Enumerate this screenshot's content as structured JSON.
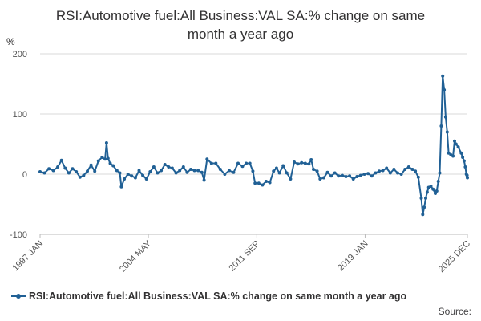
{
  "chart_data": {
    "type": "line",
    "title_lines": [
      "RSI:Automotive fuel:All Business:VAL SA:% change on same",
      "month a year ago"
    ],
    "ylabel": "%",
    "ylim": [
      -100,
      200
    ],
    "yticks": [
      "200",
      "100",
      "0",
      "-100"
    ],
    "ytick_values": [
      200,
      100,
      0,
      -100
    ],
    "xlim": [
      1997.0,
      2025.92
    ],
    "xticks": [
      {
        "label": "1997 JAN",
        "value": 1997.0
      },
      {
        "label": "2004 MAY",
        "value": 2004.33
      },
      {
        "label": "2011 SEP",
        "value": 2011.67
      },
      {
        "label": "2019 JAN",
        "value": 2019.0
      },
      {
        "label": "2025 DEC",
        "value": 2025.92
      }
    ],
    "grid": "horizontal",
    "legend_position": "bottom-left",
    "series": [
      {
        "name": "RSI:Automotive fuel:All Business:VAL SA:% change on same month a year ago",
        "color": "#206095",
        "points": [
          [
            1997.0,
            4
          ],
          [
            1997.3,
            2
          ],
          [
            1997.6,
            9
          ],
          [
            1997.9,
            6
          ],
          [
            1998.2,
            12
          ],
          [
            1998.45,
            23
          ],
          [
            1998.7,
            10
          ],
          [
            1998.95,
            2
          ],
          [
            1999.2,
            9
          ],
          [
            1999.45,
            4
          ],
          [
            1999.7,
            -5
          ],
          [
            1999.95,
            -2
          ],
          [
            2000.2,
            5
          ],
          [
            2000.45,
            15
          ],
          [
            2000.7,
            5
          ],
          [
            2000.95,
            22
          ],
          [
            2001.2,
            28
          ],
          [
            2001.4,
            25
          ],
          [
            2001.5,
            52
          ],
          [
            2001.6,
            26
          ],
          [
            2001.75,
            18
          ],
          [
            2001.95,
            14
          ],
          [
            2002.2,
            6
          ],
          [
            2002.4,
            2
          ],
          [
            2002.5,
            -21
          ],
          [
            2002.7,
            -8
          ],
          [
            2002.95,
            0
          ],
          [
            2003.2,
            -3
          ],
          [
            2003.45,
            -6
          ],
          [
            2003.7,
            6
          ],
          [
            2003.95,
            -2
          ],
          [
            2004.2,
            -8
          ],
          [
            2004.45,
            4
          ],
          [
            2004.7,
            12
          ],
          [
            2004.95,
            2
          ],
          [
            2005.2,
            6
          ],
          [
            2005.45,
            16
          ],
          [
            2005.7,
            12
          ],
          [
            2005.95,
            10
          ],
          [
            2006.2,
            2
          ],
          [
            2006.45,
            6
          ],
          [
            2006.7,
            12
          ],
          [
            2006.95,
            3
          ],
          [
            2007.2,
            8
          ],
          [
            2007.45,
            6
          ],
          [
            2007.7,
            6
          ],
          [
            2007.95,
            3
          ],
          [
            2008.1,
            -10
          ],
          [
            2008.3,
            25
          ],
          [
            2008.6,
            18
          ],
          [
            2008.9,
            18
          ],
          [
            2009.2,
            8
          ],
          [
            2009.5,
            0
          ],
          [
            2009.8,
            6
          ],
          [
            2010.1,
            3
          ],
          [
            2010.4,
            18
          ],
          [
            2010.7,
            13
          ],
          [
            2010.95,
            18
          ],
          [
            2011.2,
            18
          ],
          [
            2011.4,
            5
          ],
          [
            2011.55,
            -15
          ],
          [
            2011.8,
            -15
          ],
          [
            2012.05,
            -18
          ],
          [
            2012.3,
            -12
          ],
          [
            2012.55,
            -14
          ],
          [
            2012.8,
            5
          ],
          [
            2013.0,
            10
          ],
          [
            2013.2,
            2
          ],
          [
            2013.45,
            14
          ],
          [
            2013.7,
            2
          ],
          [
            2013.95,
            -8
          ],
          [
            2014.2,
            20
          ],
          [
            2014.45,
            17
          ],
          [
            2014.7,
            19
          ],
          [
            2014.95,
            18
          ],
          [
            2015.2,
            17
          ],
          [
            2015.35,
            24
          ],
          [
            2015.5,
            8
          ],
          [
            2015.75,
            5
          ],
          [
            2015.95,
            -8
          ],
          [
            2016.2,
            -6
          ],
          [
            2016.45,
            3
          ],
          [
            2016.7,
            -3
          ],
          [
            2016.95,
            2
          ],
          [
            2017.2,
            -3
          ],
          [
            2017.45,
            -2
          ],
          [
            2017.7,
            -4
          ],
          [
            2017.95,
            -3
          ],
          [
            2018.2,
            -8
          ],
          [
            2018.45,
            -4
          ],
          [
            2018.7,
            -2
          ],
          [
            2018.95,
            0
          ],
          [
            2019.2,
            1
          ],
          [
            2019.45,
            -3
          ],
          [
            2019.7,
            2
          ],
          [
            2019.95,
            5
          ],
          [
            2020.2,
            6
          ],
          [
            2020.45,
            10
          ],
          [
            2020.7,
            2
          ],
          [
            2020.95,
            8
          ],
          [
            2021.2,
            2
          ],
          [
            2021.45,
            0
          ],
          [
            2021.7,
            8
          ],
          [
            2021.95,
            12
          ],
          [
            2022.2,
            8
          ],
          [
            2022.4,
            5
          ],
          [
            2022.6,
            -5
          ],
          [
            2022.8,
            -40
          ],
          [
            2022.9,
            -67
          ],
          [
            2023.0,
            -55
          ],
          [
            2023.1,
            -40
          ],
          [
            2023.2,
            -30
          ],
          [
            2023.3,
            -22
          ],
          [
            2023.45,
            -20
          ],
          [
            2023.6,
            -25
          ],
          [
            2023.75,
            -32
          ],
          [
            2023.85,
            -28
          ],
          [
            2023.95,
            -12
          ],
          [
            2024.05,
            2
          ],
          [
            2024.15,
            80
          ],
          [
            2024.25,
            163
          ],
          [
            2024.35,
            140
          ],
          [
            2024.45,
            95
          ],
          [
            2024.55,
            70
          ],
          [
            2024.65,
            35
          ],
          [
            2024.8,
            32
          ],
          [
            2024.95,
            30
          ],
          [
            2025.05,
            55
          ],
          [
            2025.15,
            50
          ],
          [
            2025.3,
            45
          ],
          [
            2025.5,
            35
          ],
          [
            2025.6,
            28
          ],
          [
            2025.7,
            22
          ],
          [
            2025.78,
            12
          ],
          [
            2025.85,
            0
          ],
          [
            2025.9,
            -2
          ],
          [
            2025.92,
            -6
          ]
        ]
      }
    ],
    "source": "Source:"
  }
}
